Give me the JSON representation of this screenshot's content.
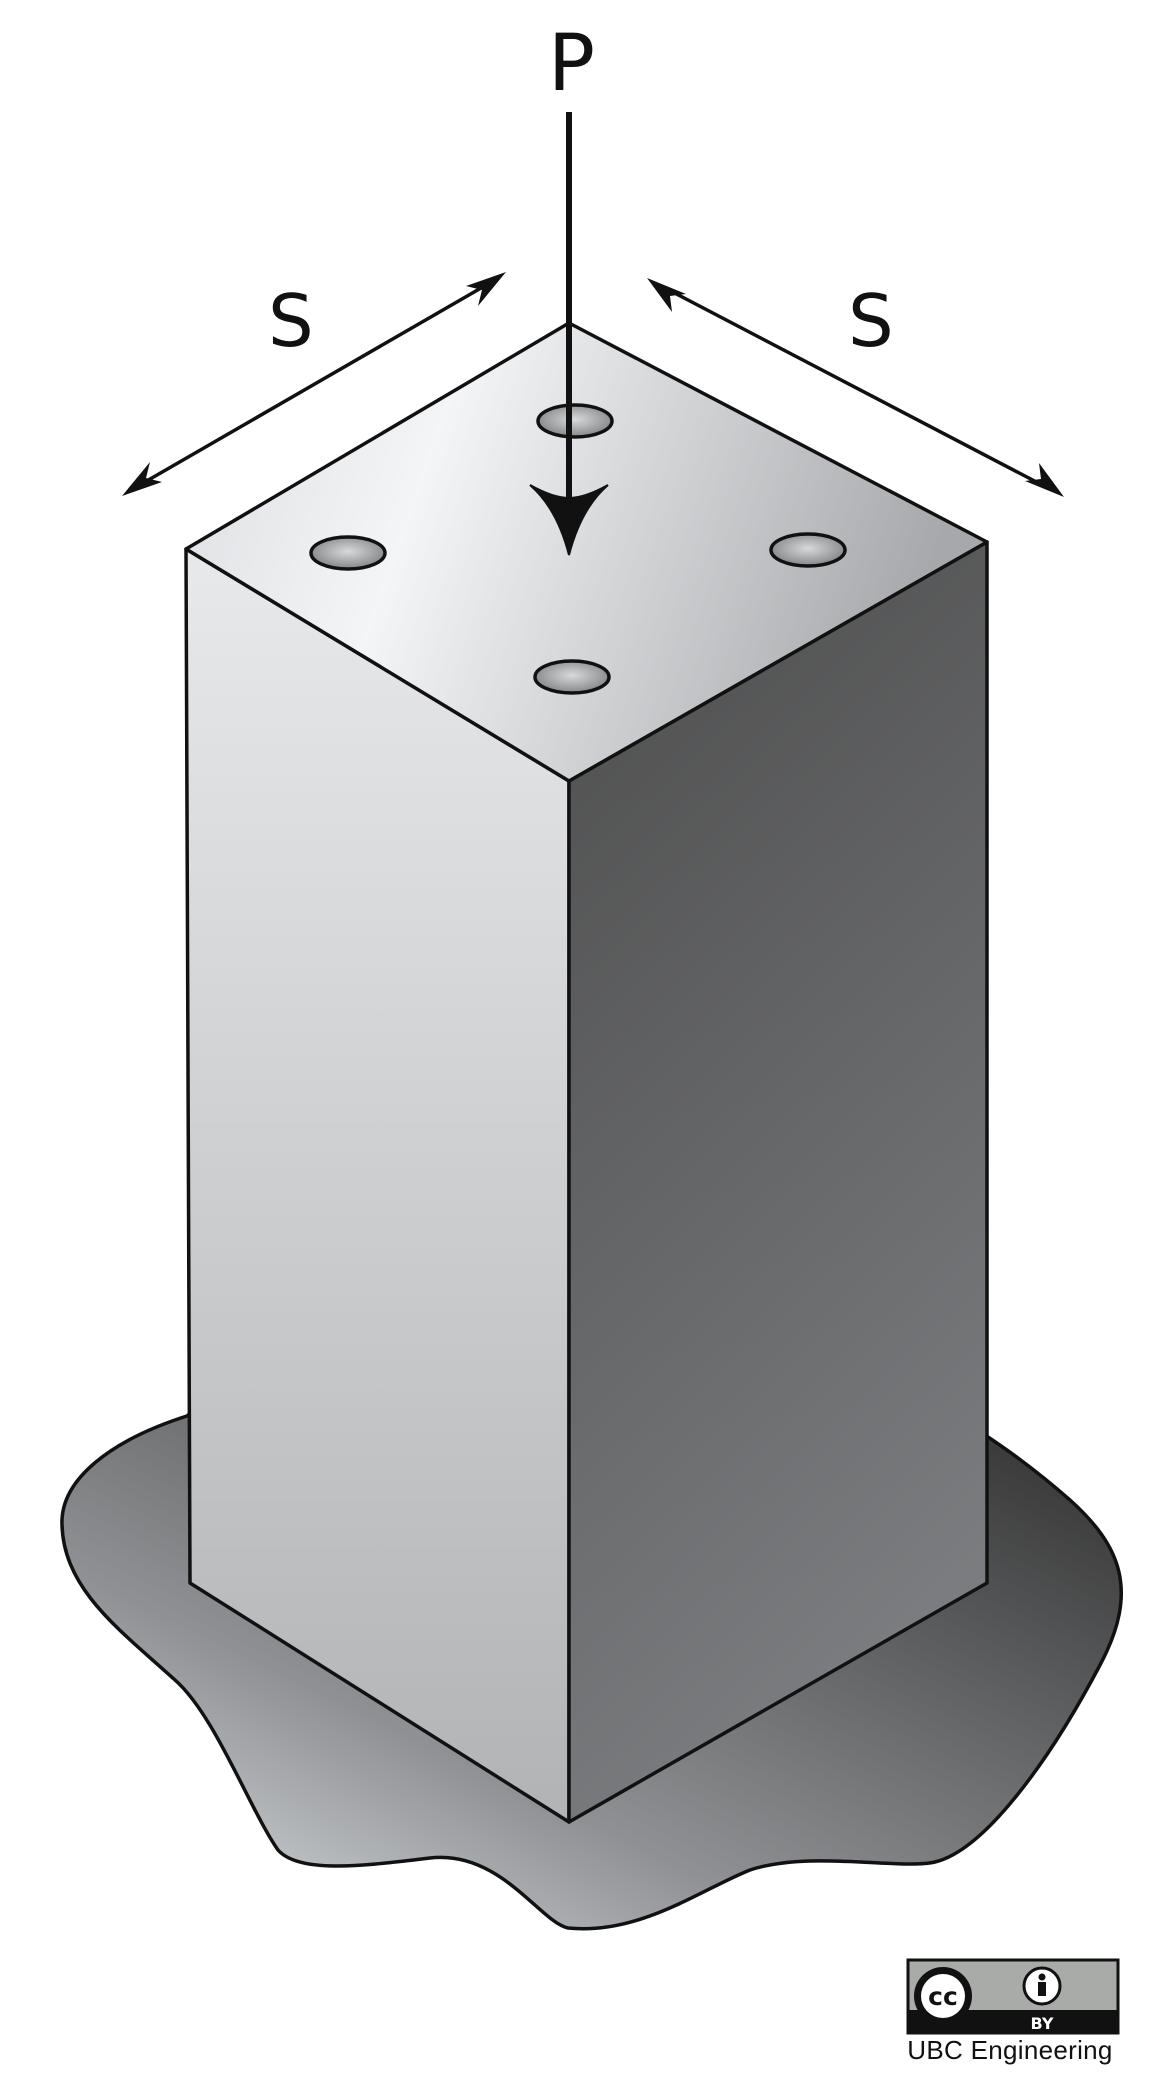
{
  "diagram": {
    "load_label": "P",
    "side_label_left": "S",
    "side_label_right": "S"
  },
  "license": {
    "cc_text": "cc",
    "by_text": "BY",
    "credit": "UBC Engineering"
  },
  "colors": {
    "outline": "#111111",
    "top_face_light": "#f3f4f6",
    "top_face_dark": "#a9abad",
    "left_face_light": "#e6e7e9",
    "left_face_dark": "#b4b5b7",
    "right_face_light": "#505050",
    "right_face_dark": "#75777a",
    "ground_light": "#dfe3e7",
    "ground_dark": "#3a3a3a",
    "badge_gray": "#a8aba8"
  }
}
